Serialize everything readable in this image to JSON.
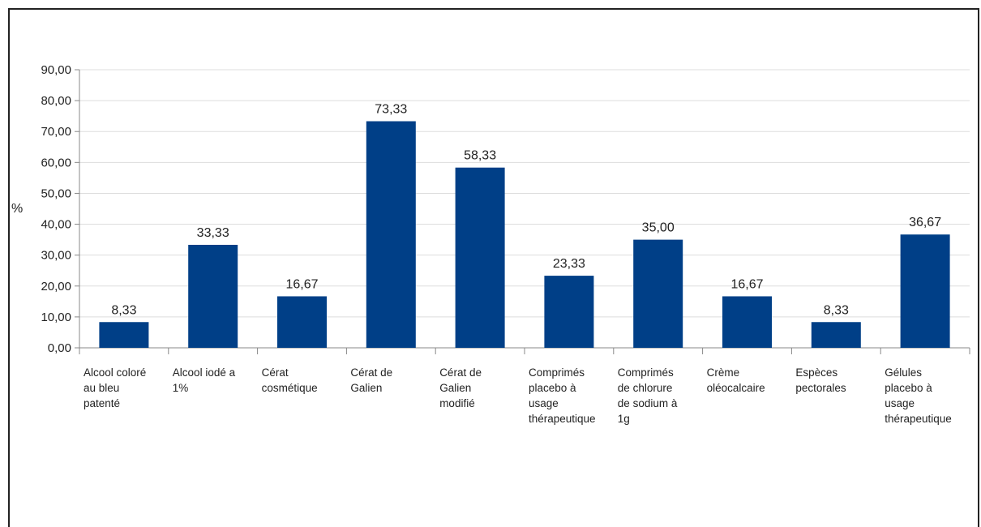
{
  "chart_data": {
    "type": "bar",
    "categories": [
      [
        "Alcool coloré",
        "au bleu",
        "patenté"
      ],
      [
        "Alcool iodé a",
        "1%"
      ],
      [
        "Cérat",
        "cosmétique"
      ],
      [
        "Cérat de",
        "Galien"
      ],
      [
        "Cérat de",
        "Galien",
        "modifié"
      ],
      [
        "Comprimés",
        "placebo à",
        "usage",
        "thérapeutique"
      ],
      [
        "Comprimés",
        "de chlorure",
        "de sodium à",
        "1g"
      ],
      [
        "Crème",
        "oléocalcaire"
      ],
      [
        "Espèces",
        "pectorales"
      ],
      [
        "Gélules",
        "placebo à",
        "usage",
        "thérapeutique"
      ]
    ],
    "values": [
      8.33,
      33.33,
      16.67,
      73.33,
      58.33,
      23.33,
      35.0,
      16.67,
      8.33,
      36.67
    ],
    "value_labels": [
      "8,33",
      "33,33",
      "16,67",
      "73,33",
      "58,33",
      "23,33",
      "35,00",
      "16,67",
      "8,33",
      "36,67"
    ],
    "ylabel": "%",
    "ylim": [
      0,
      90
    ],
    "yticks": [
      "0,00",
      "10,00",
      "20,00",
      "30,00",
      "40,00",
      "50,00",
      "60,00",
      "70,00",
      "80,00",
      "90,00"
    ],
    "grid": true,
    "bar_color": "#003f87",
    "grid_color": "#dddddd"
  }
}
